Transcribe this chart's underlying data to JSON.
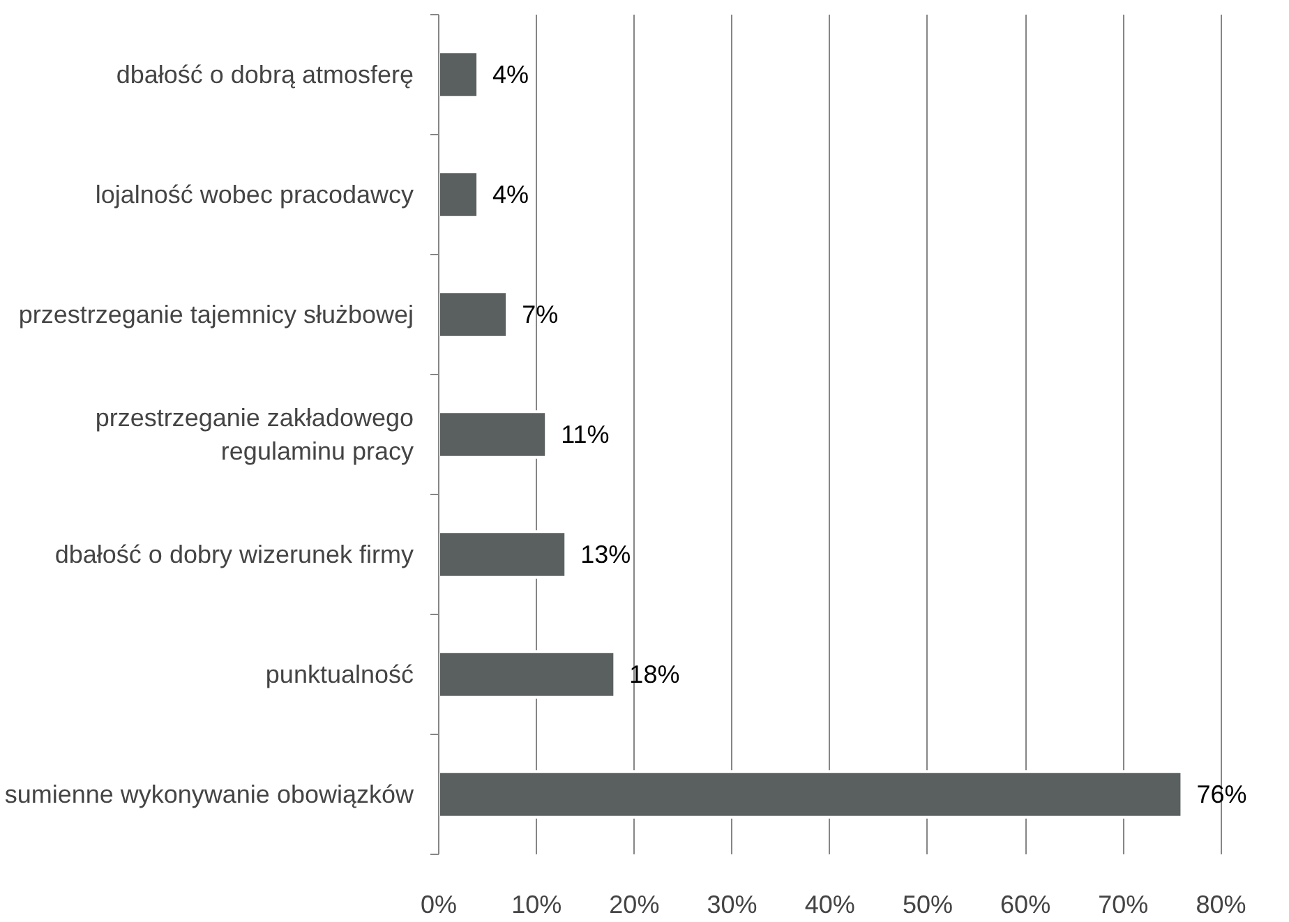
{
  "chart_data": {
    "type": "bar",
    "orientation": "horizontal",
    "categories": [
      "dbałość o dobrą atmosferę",
      "lojalność wobec pracodawcy",
      "przestrzeganie tajemnicy służbowej",
      "przestrzeganie zakładowego\nregulaminu pracy",
      "dbałość o dobry wizerunek firmy",
      "punktualność",
      "sumienne wykonywanie obowiązków"
    ],
    "values": [
      4,
      4,
      7,
      11,
      13,
      18,
      76
    ],
    "value_labels": [
      "4%",
      "4%",
      "7%",
      "11%",
      "13%",
      "18%",
      "76%"
    ],
    "color": "#5a5f5f",
    "xlim": [
      0,
      80
    ],
    "xticks": [
      {
        "value": 0,
        "label": "0%"
      },
      {
        "value": 10,
        "label": "10%"
      },
      {
        "value": 20,
        "label": "20%"
      },
      {
        "value": 30,
        "label": "30%"
      },
      {
        "value": 40,
        "label": "40%"
      },
      {
        "value": 50,
        "label": "50%"
      },
      {
        "value": 60,
        "label": "60%"
      },
      {
        "value": 70,
        "label": "70%"
      },
      {
        "value": 80,
        "label": "80%"
      }
    ],
    "grid": "x"
  }
}
